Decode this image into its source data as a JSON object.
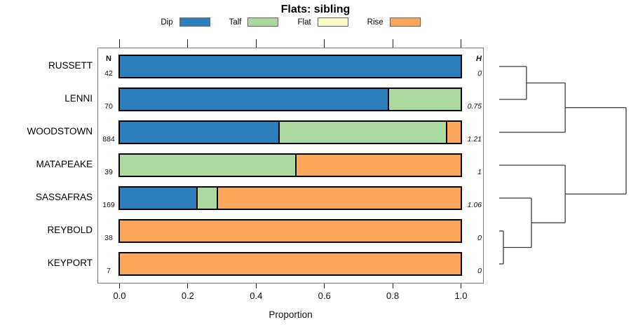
{
  "title": {
    "text": "Flats: sibling"
  },
  "legend": {
    "items": [
      {
        "label": "Dip",
        "color": "#2E7EBB"
      },
      {
        "label": "Talf",
        "color": "#ACD9A0"
      },
      {
        "label": "Flat",
        "color": "#FCFCC9"
      },
      {
        "label": "Rise",
        "color": "#FBA75C"
      }
    ]
  },
  "columns": {
    "n_header": "N",
    "h_header": "H"
  },
  "rows": [
    {
      "label": "RUSSETT",
      "n": "42",
      "h": "0",
      "segments": [
        {
          "cat": "Dip",
          "value": 1.0
        }
      ]
    },
    {
      "label": "LENNI",
      "n": "70",
      "h": "0.75",
      "segments": [
        {
          "cat": "Dip",
          "value": 0.785
        },
        {
          "cat": "Talf",
          "value": 0.215
        }
      ]
    },
    {
      "label": "WOODSTOWN",
      "n": "884",
      "h": "1.21",
      "segments": [
        {
          "cat": "Dip",
          "value": 0.464
        },
        {
          "cat": "Talf",
          "value": 0.492
        },
        {
          "cat": "Rise",
          "value": 0.044
        }
      ]
    },
    {
      "label": "MATAPEAKE",
      "n": "39",
      "h": "1",
      "segments": [
        {
          "cat": "Talf",
          "value": 0.514
        },
        {
          "cat": "Rise",
          "value": 0.486
        }
      ]
    },
    {
      "label": "SASSAFRAS",
      "n": "169",
      "h": "1.06",
      "segments": [
        {
          "cat": "Dip",
          "value": 0.224
        },
        {
          "cat": "Talf",
          "value": 0.06
        },
        {
          "cat": "Rise",
          "value": 0.716
        }
      ]
    },
    {
      "label": "REYBOLD",
      "n": "38",
      "h": "0",
      "segments": [
        {
          "cat": "Rise",
          "value": 1.0
        }
      ]
    },
    {
      "label": "KEYPORT",
      "n": "7",
      "h": "0",
      "segments": [
        {
          "cat": "Rise",
          "value": 1.0
        }
      ]
    }
  ],
  "axis": {
    "ticks": [
      "0.0",
      "0.2",
      "0.4",
      "0.6",
      "0.8",
      "1.0"
    ],
    "tick_values": [
      0.0,
      0.2,
      0.4,
      0.6,
      0.8,
      1.0
    ],
    "xlabel": "Proportion",
    "xlim": [
      0,
      1
    ]
  },
  "dendrogram": {
    "tree": {
      "height": 1.0,
      "children": [
        {
          "height": 0.52,
          "children": [
            {
              "height": 0.215,
              "children": [
                {
                  "leaf": 0
                },
                {
                  "leaf": 1
                }
              ]
            },
            {
              "leaf": 2
            }
          ]
        },
        {
          "height": 0.52,
          "children": [
            {
              "leaf": 3
            },
            {
              "height": 0.254,
              "children": [
                {
                  "leaf": 4
                },
                {
                  "height": 0.033,
                  "children": [
                    {
                      "leaf": 5
                    },
                    {
                      "leaf": 6
                    }
                  ]
                }
              ]
            }
          ]
        }
      ]
    }
  },
  "chart_data": {
    "type": "bar",
    "orientation": "horizontal",
    "stacked": true,
    "title": "Flats: sibling",
    "xlabel": "Proportion",
    "xlim": [
      0,
      1
    ],
    "legend_position": "top",
    "categories": [
      "RUSSETT",
      "LENNI",
      "WOODSTOWN",
      "MATAPEAKE",
      "SASSAFRAS",
      "REYBOLD",
      "KEYPORT"
    ],
    "series": [
      {
        "name": "Dip",
        "values": [
          1.0,
          0.785,
          0.464,
          0.0,
          0.224,
          0.0,
          0.0
        ]
      },
      {
        "name": "Talf",
        "values": [
          0.0,
          0.215,
          0.492,
          0.514,
          0.06,
          0.0,
          0.0
        ]
      },
      {
        "name": "Flat",
        "values": [
          0.0,
          0.0,
          0.0,
          0.0,
          0.0,
          0.0,
          0.0
        ]
      },
      {
        "name": "Rise",
        "values": [
          0.0,
          0.0,
          0.044,
          0.486,
          0.716,
          1.0,
          1.0
        ]
      }
    ],
    "N": [
      42,
      70,
      884,
      39,
      169,
      38,
      7
    ],
    "H": [
      0,
      0.75,
      1.21,
      1,
      1.06,
      0,
      0
    ]
  }
}
